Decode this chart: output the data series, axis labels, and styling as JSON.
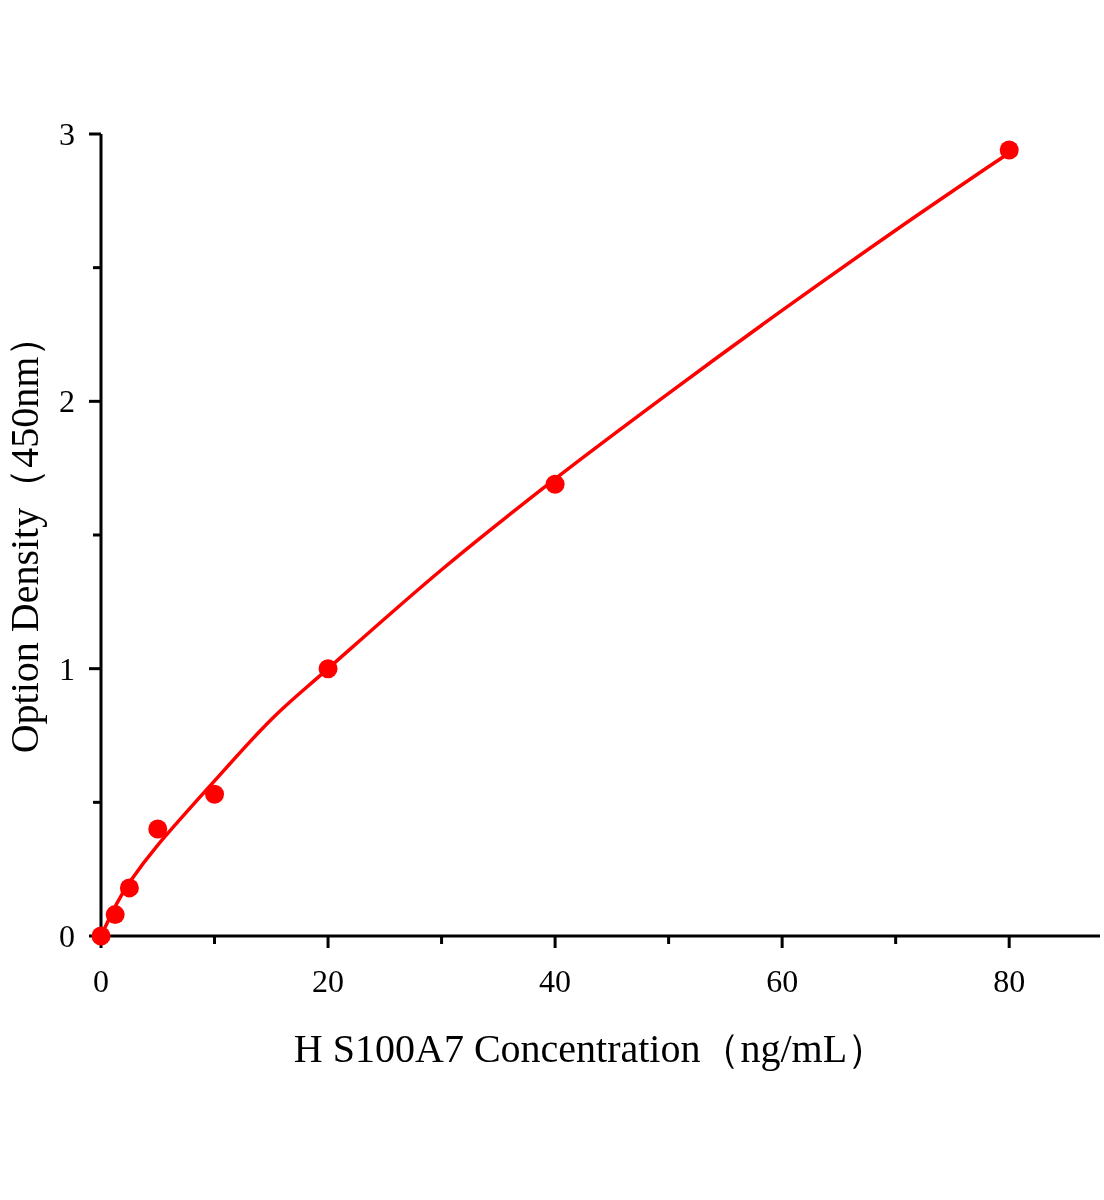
{
  "chart_data": {
    "type": "scatter",
    "xlabel": "H S100A7 Concentration（ng/mL）",
    "ylabel": "Option Density（450nm）",
    "xlim": [
      0,
      88
    ],
    "ylim": [
      0,
      3
    ],
    "xticks": [
      0,
      {
        "value": 10,
        "label": null
      },
      20,
      {
        "value": 30,
        "label": null
      },
      40,
      {
        "value": 50,
        "label": null
      },
      60,
      {
        "value": 70,
        "label": null
      },
      80
    ],
    "yticks": [
      0,
      {
        "value": 0.5,
        "label": null
      },
      1,
      {
        "value": 1.5,
        "label": null
      },
      2,
      {
        "value": 2.5,
        "label": null
      },
      3
    ],
    "grid": false,
    "series": [
      {
        "type": "scatter",
        "marker": "circle",
        "color": "#ff0000",
        "x": [
          0,
          1.25,
          2.5,
          5,
          10,
          20,
          40,
          80
        ],
        "values": [
          0,
          0.08,
          0.18,
          0.4,
          0.53,
          1.0,
          1.69,
          2.94
        ]
      },
      {
        "type": "line",
        "marker": "none",
        "line_style": "solid",
        "color": "#ff0000",
        "x": [
          0,
          1.25,
          2.5,
          5,
          10,
          15,
          20,
          30,
          40,
          50,
          60,
          70,
          80
        ],
        "values": [
          0,
          0.11,
          0.2,
          0.34,
          0.58,
          0.81,
          1.0,
          1.37,
          1.71,
          2.03,
          2.34,
          2.64,
          2.93
        ]
      }
    ]
  }
}
